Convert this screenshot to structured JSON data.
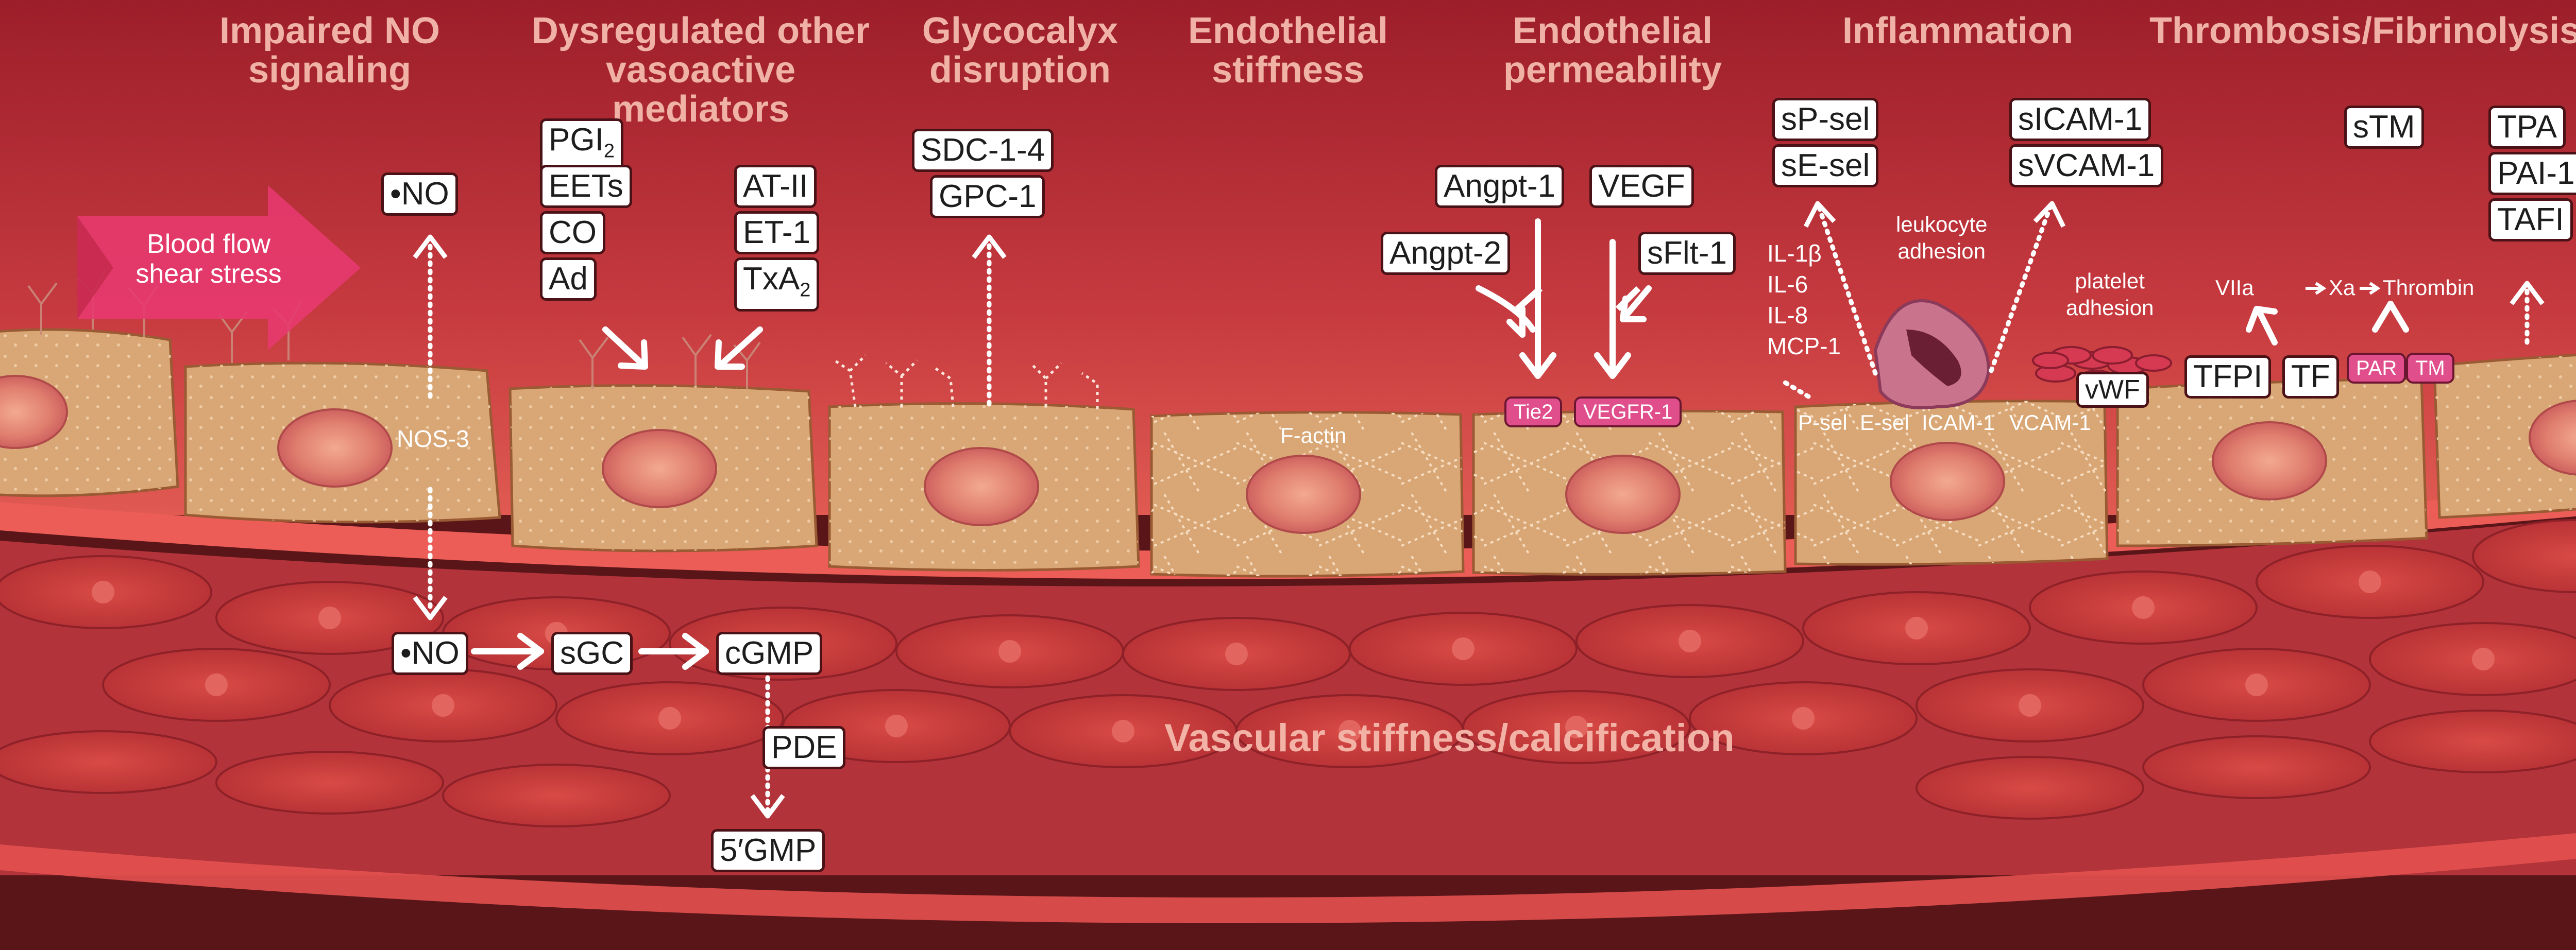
{
  "titles": {
    "no": "Impaired NO\nsignaling",
    "dysreg": "Dysregulated other\nvasoactive mediators",
    "glyco": "Glycocalyx\ndisruption",
    "stiff": "Endothelial\nstiffness",
    "perm": "Endothelial\npermeability",
    "infl": "Inflammation",
    "thromb": "Thrombosis/Fibrinolysis"
  },
  "flow_label": "Blood flow\nshear stress",
  "no_pathway": {
    "no_top": "NO",
    "nos": "NOS-3",
    "no_bottom": "NO",
    "sgc": "sGC",
    "cgmp": "cGMP",
    "pde": "PDE",
    "gmp": "5′GMP"
  },
  "vasodilators": [
    "PGI",
    "EETs",
    "CO",
    "Ad"
  ],
  "pgi_subscript": "2",
  "vasoconstrictors": [
    "AT-II",
    "ET-1",
    "TxA"
  ],
  "txa_subscript": "2",
  "glycocalyx": [
    "SDC-1-4",
    "GPC-1"
  ],
  "stiffness_label": "F-actin",
  "permeability": {
    "angpt1": "Angpt-1",
    "angpt2": "Angpt-2",
    "vegf": "VEGF",
    "sflt": "sFlt-1",
    "tie2": "Tie2",
    "vegfr": "VEGFR-1"
  },
  "inflammation": {
    "soluble_sel": [
      "sP-sel",
      "sE-sel"
    ],
    "soluble_cam": [
      "sICAM-1",
      "sVCAM-1"
    ],
    "cytokines": [
      "IL-1β",
      "IL-6",
      "IL-8",
      "MCP-1"
    ],
    "receptors": [
      "P-sel",
      "E-sel",
      "ICAM-1",
      "VCAM-1"
    ],
    "leukocyte_label": "leukocyte\nadhesion",
    "platelet_label": "platelet\nadhesion",
    "vwf": "vWF"
  },
  "thrombosis": {
    "stm": "sTM",
    "fibrinolysis": [
      "TPA",
      "PAI-1",
      "TAFI"
    ],
    "tfpi": "TFPI",
    "tf": "TF",
    "cascade": [
      "VIIa",
      "Xa",
      "Thrombin"
    ],
    "par": "PAR",
    "tm": "TM"
  },
  "media_label": "Vascular stiffness/calcification",
  "colors": {
    "lumen_top": "#a11f2c",
    "lumen_bottom": "#d94a4c",
    "endothelium": "#d9a775",
    "nucleus": "#e07f6f",
    "smooth_muscle": "#c83a3a",
    "badge": "#e04f8b",
    "title": "#f0b2a6"
  }
}
